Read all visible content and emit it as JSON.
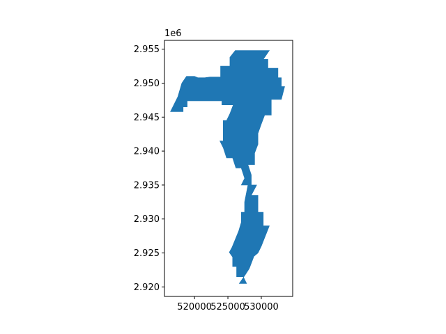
{
  "chart_data": {
    "type": "map",
    "x_ticks": [
      "520000",
      "525000",
      "530000"
    ],
    "x_tick_values": [
      520000,
      525000,
      530000
    ],
    "y_ticks": [
      "2.920",
      "2.925",
      "2.930",
      "2.935",
      "2.940",
      "2.945",
      "2.950",
      "2.955"
    ],
    "y_tick_values": [
      2.92,
      2.925,
      2.93,
      2.935,
      2.94,
      2.945,
      2.95,
      2.955
    ],
    "y_offset_label": "1e6",
    "xlim": [
      515500,
      534700
    ],
    "ylim": [
      2.9186,
      2.9563
    ],
    "fill_color": "#1f77b4",
    "grid": false,
    "polygon": [
      [
        522300,
        2.9509
      ],
      [
        523900,
        2.9509
      ],
      [
        523900,
        2.9525
      ],
      [
        525300,
        2.9525
      ],
      [
        525300,
        2.9538
      ],
      [
        526100,
        2.9548
      ],
      [
        531200,
        2.9548
      ],
      [
        530300,
        2.9535
      ],
      [
        531000,
        2.9535
      ],
      [
        531000,
        2.9522
      ],
      [
        532500,
        2.9522
      ],
      [
        532500,
        2.9508
      ],
      [
        533000,
        2.9508
      ],
      [
        533000,
        2.9495
      ],
      [
        533500,
        2.9495
      ],
      [
        533000,
        2.9476
      ],
      [
        531500,
        2.9476
      ],
      [
        531500,
        2.9453
      ],
      [
        530500,
        2.9453
      ],
      [
        530000,
        2.944
      ],
      [
        529500,
        2.9426
      ],
      [
        529500,
        2.941
      ],
      [
        529000,
        2.9397
      ],
      [
        529000,
        2.938
      ],
      [
        528000,
        2.938
      ],
      [
        528500,
        2.9365
      ],
      [
        528500,
        2.935
      ],
      [
        529300,
        2.935
      ],
      [
        528500,
        2.9335
      ],
      [
        529500,
        2.9335
      ],
      [
        529500,
        2.931
      ],
      [
        530300,
        2.931
      ],
      [
        530300,
        2.929
      ],
      [
        531200,
        2.929
      ],
      [
        530000,
        2.926
      ],
      [
        529500,
        2.925
      ],
      [
        528900,
        2.9245
      ],
      [
        528200,
        2.9227
      ],
      [
        527600,
        2.9218
      ],
      [
        526700,
        2.9205
      ],
      [
        527800,
        2.9205
      ],
      [
        527300,
        2.9215
      ],
      [
        526300,
        2.9215
      ],
      [
        526300,
        2.923
      ],
      [
        525700,
        2.923
      ],
      [
        525700,
        2.9244
      ],
      [
        525200,
        2.9251
      ],
      [
        525600,
        2.9258
      ],
      [
        526100,
        2.927
      ],
      [
        526600,
        2.9282
      ],
      [
        527000,
        2.9295
      ],
      [
        527000,
        2.931
      ],
      [
        527500,
        2.931
      ],
      [
        527500,
        2.9325
      ],
      [
        528000,
        2.935
      ],
      [
        527000,
        2.935
      ],
      [
        527500,
        2.936
      ],
      [
        527000,
        2.9375
      ],
      [
        526200,
        2.9375
      ],
      [
        525700,
        2.939
      ],
      [
        524800,
        2.939
      ],
      [
        524300,
        2.9405
      ],
      [
        523800,
        2.9415
      ],
      [
        524300,
        2.9415
      ],
      [
        524300,
        2.9445
      ],
      [
        524800,
        2.9445
      ],
      [
        525300,
        2.9455
      ],
      [
        525800,
        2.9468
      ],
      [
        524100,
        2.9468
      ],
      [
        524100,
        2.9474
      ],
      [
        518900,
        2.9474
      ],
      [
        518900,
        2.9465
      ],
      [
        518300,
        2.9465
      ],
      [
        518300,
        2.9458
      ],
      [
        516400,
        2.9458
      ],
      [
        517500,
        2.948
      ],
      [
        518100,
        2.95
      ],
      [
        518800,
        2.951
      ],
      [
        520000,
        2.951
      ],
      [
        520500,
        2.9508
      ],
      [
        521500,
        2.9508
      ],
      [
        522300,
        2.9509
      ]
    ]
  }
}
